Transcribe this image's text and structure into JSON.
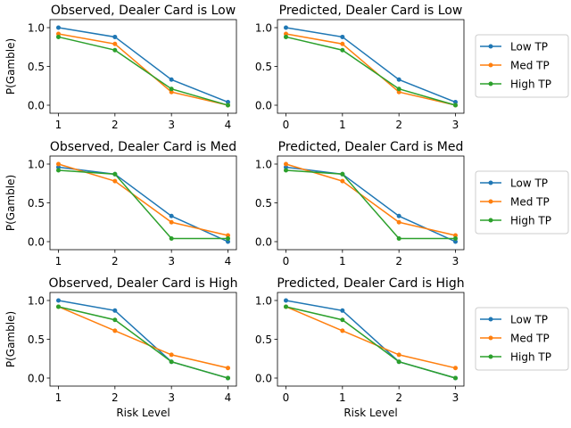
{
  "colors": {
    "low": "#1f77b4",
    "med": "#ff7f0e",
    "high": "#2ca02c"
  },
  "legend": [
    "Low TP",
    "Med TP",
    "High TP"
  ],
  "chart_data": [
    {
      "type": "line",
      "title": "Observed, Dealer Card is Low",
      "x": [
        1,
        2,
        3,
        4
      ],
      "ylabel": "P(Gamble)",
      "xlabel": "",
      "yticks": [
        "0.0",
        "0.5",
        "1.0"
      ],
      "ylim": [
        0,
        1
      ],
      "series": [
        {
          "name": "Low TP",
          "values": [
            1.0,
            0.88,
            0.33,
            0.04
          ]
        },
        {
          "name": "Med TP",
          "values": [
            0.92,
            0.79,
            0.17,
            0.0
          ]
        },
        {
          "name": "High TP",
          "values": [
            0.88,
            0.71,
            0.21,
            0.0
          ]
        }
      ]
    },
    {
      "type": "line",
      "title": "Predicted, Dealer Card is Low",
      "x": [
        0,
        1,
        2,
        3
      ],
      "ylabel": "",
      "xlabel": "",
      "yticks": [
        "0.0",
        "0.5",
        "1.0"
      ],
      "ylim": [
        0,
        1
      ],
      "series": [
        {
          "name": "Low TP",
          "values": [
            1.0,
            0.88,
            0.33,
            0.04
          ]
        },
        {
          "name": "Med TP",
          "values": [
            0.92,
            0.79,
            0.17,
            0.0
          ]
        },
        {
          "name": "High TP",
          "values": [
            0.88,
            0.71,
            0.21,
            0.0
          ]
        }
      ]
    },
    {
      "type": "line",
      "title": "Observed, Dealer Card is Med",
      "x": [
        1,
        2,
        3,
        4
      ],
      "ylabel": "P(Gamble)",
      "xlabel": "",
      "yticks": [
        "0.0",
        "0.5",
        "1.0"
      ],
      "ylim": [
        0,
        1
      ],
      "series": [
        {
          "name": "Low TP",
          "values": [
            0.96,
            0.87,
            0.33,
            0.0
          ]
        },
        {
          "name": "Med TP",
          "values": [
            1.0,
            0.78,
            0.25,
            0.08
          ]
        },
        {
          "name": "High TP",
          "values": [
            0.92,
            0.87,
            0.04,
            0.04
          ]
        }
      ]
    },
    {
      "type": "line",
      "title": "Predicted, Dealer Card is Med",
      "x": [
        0,
        1,
        2,
        3
      ],
      "ylabel": "",
      "xlabel": "",
      "yticks": [
        "0.0",
        "0.5",
        "1.0"
      ],
      "ylim": [
        0,
        1
      ],
      "series": [
        {
          "name": "Low TP",
          "values": [
            0.96,
            0.87,
            0.33,
            0.0
          ]
        },
        {
          "name": "Med TP",
          "values": [
            1.0,
            0.78,
            0.25,
            0.08
          ]
        },
        {
          "name": "High TP",
          "values": [
            0.92,
            0.87,
            0.04,
            0.04
          ]
        }
      ]
    },
    {
      "type": "line",
      "title": "Observed, Dealer Card is High",
      "x": [
        1,
        2,
        3,
        4
      ],
      "ylabel": "P(Gamble)",
      "xlabel": "Risk Level",
      "yticks": [
        "0.0",
        "0.5",
        "1.0"
      ],
      "ylim": [
        0,
        1
      ],
      "series": [
        {
          "name": "Low TP",
          "values": [
            1.0,
            0.87,
            0.21,
            0.0
          ]
        },
        {
          "name": "Med TP",
          "values": [
            0.92,
            0.61,
            0.3,
            0.13
          ]
        },
        {
          "name": "High TP",
          "values": [
            0.92,
            0.75,
            0.21,
            0.0
          ]
        }
      ]
    },
    {
      "type": "line",
      "title": "Predicted, Dealer Card is High",
      "x": [
        0,
        1,
        2,
        3
      ],
      "ylabel": "",
      "xlabel": "Risk Level",
      "yticks": [
        "0.0",
        "0.5",
        "1.0"
      ],
      "ylim": [
        0,
        1
      ],
      "series": [
        {
          "name": "Low TP",
          "values": [
            1.0,
            0.87,
            0.21,
            0.0
          ]
        },
        {
          "name": "Med TP",
          "values": [
            0.92,
            0.61,
            0.3,
            0.13
          ]
        },
        {
          "name": "High TP",
          "values": [
            0.92,
            0.75,
            0.21,
            0.0
          ]
        }
      ]
    }
  ]
}
